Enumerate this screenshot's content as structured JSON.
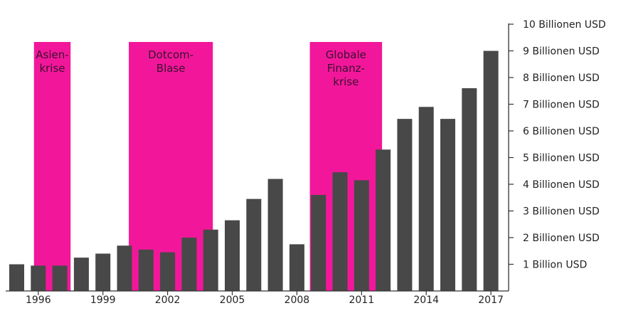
{
  "chart_data": {
    "type": "bar",
    "x": [
      1995,
      1996,
      1997,
      1998,
      1999,
      2000,
      2001,
      2002,
      2003,
      2004,
      2005,
      2006,
      2007,
      2008,
      2009,
      2010,
      2011,
      2012,
      2013,
      2014,
      2015,
      2016,
      2017
    ],
    "values": [
      1.0,
      0.95,
      0.95,
      1.25,
      1.4,
      1.7,
      1.55,
      1.45,
      2.0,
      2.3,
      2.65,
      3.45,
      4.2,
      1.75,
      3.6,
      4.45,
      4.15,
      5.3,
      6.45,
      6.9,
      6.45,
      7.6,
      9.0
    ],
    "bar_color": "#484848",
    "ylim": [
      0,
      10
    ],
    "y_tick_values": [
      1,
      2,
      3,
      4,
      5,
      6,
      7,
      8,
      9,
      10
    ],
    "y_tick_labels": [
      "1 Billion USD",
      "2 Billionen USD",
      "3 Billionen USD",
      "4 Billionen USD",
      "5 Billionen USD",
      "6 Billionen USD",
      "7 Billionen USD",
      "8 Billionen USD",
      "9 Billionen USD",
      "10 Billionen USD"
    ],
    "x_tick_values": [
      1996,
      1999,
      2002,
      2005,
      2008,
      2011,
      2014,
      2017
    ],
    "x_tick_labels": [
      "1996",
      "1999",
      "2002",
      "2005",
      "2008",
      "2011",
      "2014",
      "2017"
    ],
    "y_axis_position": "right",
    "grid": false,
    "highlight_color": "#f2179a",
    "highlights": [
      {
        "label_lines": [
          "Asien-",
          "krise"
        ],
        "x_start": 1995.8,
        "x_end": 1997.5
      },
      {
        "label_lines": [
          "Dotcom-",
          "Blase"
        ],
        "x_start": 2000.2,
        "x_end": 2004.1
      },
      {
        "label_lines": [
          "Globale",
          "Finanz-",
          "krise"
        ],
        "x_start": 2008.6,
        "x_end": 2011.95
      }
    ]
  }
}
